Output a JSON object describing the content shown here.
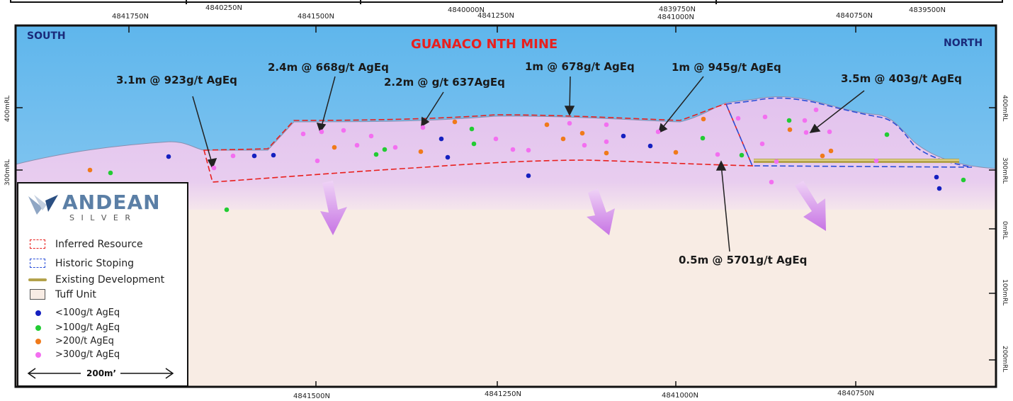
{
  "title": "GUANACO NTH MINE",
  "directions": {
    "south": "SOUTH",
    "north": "NORTH"
  },
  "top_axis_upper": [
    "4840250N",
    "4840000N",
    "4839750N",
    "4839500N"
  ],
  "top_axis_lower": [
    "4841750N",
    "4841500N",
    "4841250N",
    "4841000N",
    "4840750N"
  ],
  "bottom_axis": [
    "4841500N",
    "4841250N",
    "4841000N",
    "4840750N"
  ],
  "rl_right": [
    "400mRL",
    "300mRL",
    "0mRL",
    "100mRL",
    "200mRL"
  ],
  "rl_left": [
    "400mRL",
    "300mRL"
  ],
  "intercepts": [
    "3.1m @ 923g/t AgEq",
    "2.4m @ 668g/t AgEq",
    "2.2m @ g/t 637AgEq",
    "1m @ 678g/t AgEq",
    "1m @ 945g/t AgEq",
    "3.5m @ 403g/t AgEq",
    "0.5m @ 5701g/t AgEq"
  ],
  "logo": {
    "name": "ANDEAN",
    "sub": "S I L V E R"
  },
  "legend": [
    {
      "label": "Inferred Resource",
      "symbol": "red-dashed-box"
    },
    {
      "label": "Historic Stoping",
      "symbol": "blue-dashed-box"
    },
    {
      "label": "Existing Development",
      "symbol": "gold-bar"
    },
    {
      "label": "Tuff Unit",
      "symbol": "tan-box"
    },
    {
      "label": "<100g/t AgEq",
      "symbol": "blue-dot"
    },
    {
      "label": ">100g/t AgEq",
      "symbol": "green-dot"
    },
    {
      "label": ">200/t AgEq",
      "symbol": "orange-dot"
    },
    {
      "label": ">300g/t AgEq",
      "symbol": "pink-dot"
    }
  ],
  "scale_bar": "200m’",
  "colors": {
    "sky": "#5ab4ea",
    "pink": "#dfbfea",
    "tuff": "#f8ece4",
    "inferred": "#e8201e",
    "stoping": "#2a4fd8",
    "blue_dot": "#1520c0",
    "green_dot": "#22cc33",
    "orange_dot": "#f07a1a",
    "pink_dot": "#f36ff0"
  }
}
